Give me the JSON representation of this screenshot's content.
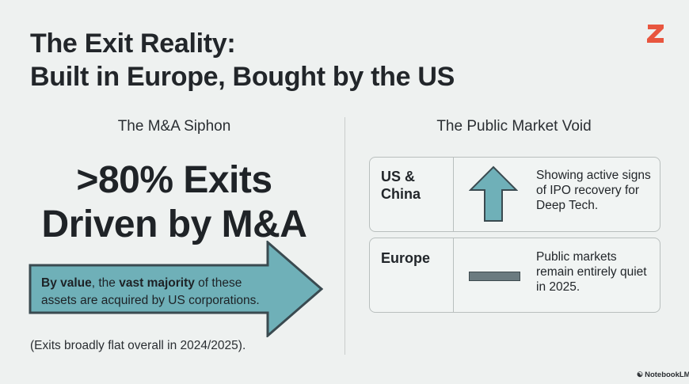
{
  "title": {
    "line1": "The Exit Reality:",
    "line2": "Built in Europe, Bought by the US"
  },
  "logo": {
    "letter": "Z",
    "color": "#e8563f"
  },
  "left": {
    "heading": "The M&A Siphon",
    "stat_line1": ">80% Exits",
    "stat_line2": "Driven by M&A",
    "arrow_text": {
      "bold1": "By value",
      "text1": ", the ",
      "bold2": "vast majority",
      "text2": " of these assets are acquired by US corporations."
    },
    "footnote": "(Exits broadly flat overall in 2024/2025)."
  },
  "right": {
    "heading": "The Public Market Void",
    "rows": [
      {
        "region": "US & China",
        "indicator": "up-arrow-icon",
        "description": "Showing active signs of IPO recovery for Deep Tech."
      },
      {
        "region": "Europe",
        "indicator": "flat-bar-icon",
        "description": "Public markets remain entirely quiet in 2025."
      }
    ]
  },
  "badge": "NotebookLM",
  "colors": {
    "background": "#eef1f0",
    "teal": "#6fb0b8",
    "border": "#3a4a50",
    "logo": "#e8563f"
  }
}
